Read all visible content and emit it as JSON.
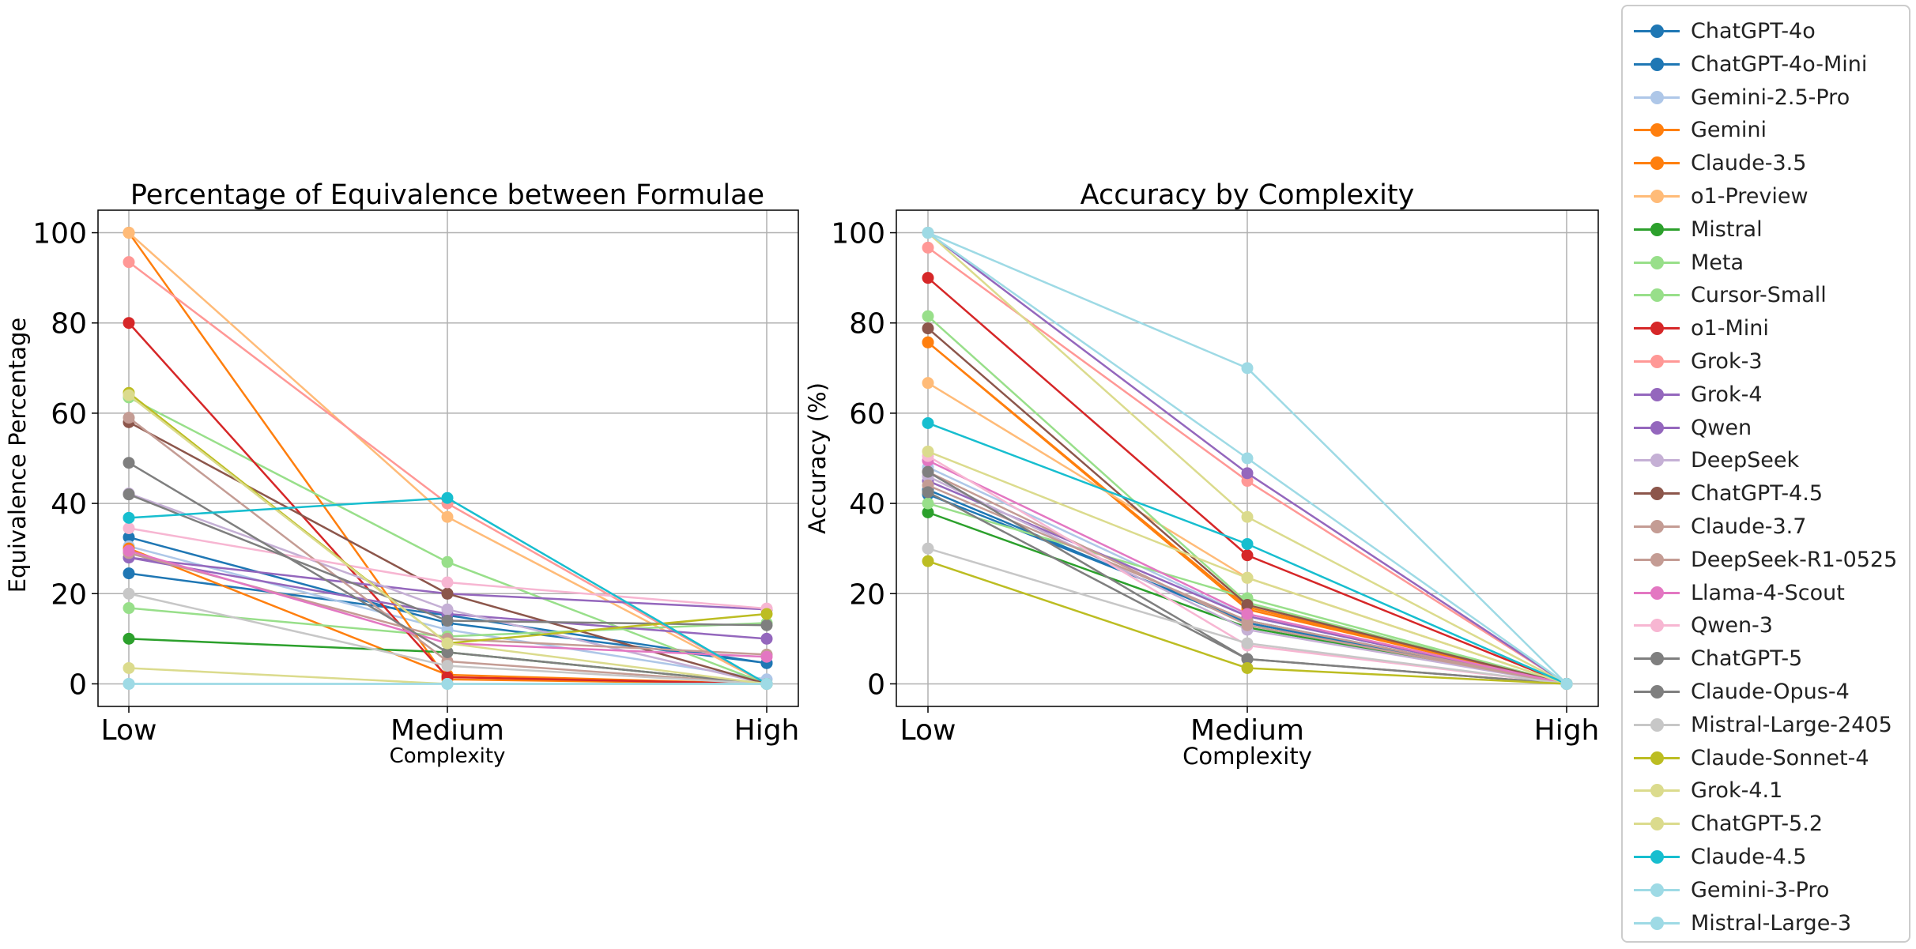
{
  "chart_data": [
    {
      "type": "line",
      "title": "Percentage of Equivalence between Formulae",
      "xlabel": "Complexity",
      "ylabel": "Equivalence Percentage",
      "categories": [
        "Low",
        "Medium",
        "High"
      ],
      "ylim": [
        -5,
        105
      ],
      "yticks": [
        0,
        20,
        40,
        60,
        80,
        100
      ],
      "grid": true,
      "series": [
        {
          "name": "ChatGPT-4o",
          "values": [
            32.5,
            13.5,
            4.6
          ]
        },
        {
          "name": "ChatGPT-4o-Mini",
          "values": [
            24.5,
            15.2,
            4.6
          ]
        },
        {
          "name": "Gemini-2.5-Pro",
          "values": [
            30.5,
            12.0,
            1.0
          ]
        },
        {
          "name": "Gemini",
          "values": [
            30.0,
            2.0,
            0.0
          ]
        },
        {
          "name": "Claude-3.5",
          "values": [
            100.0,
            1.0,
            0.0
          ]
        },
        {
          "name": "o1-Preview",
          "values": [
            100.0,
            37.0,
            0.0
          ]
        },
        {
          "name": "Mistral",
          "values": [
            10.0,
            7.0,
            0.0
          ]
        },
        {
          "name": "Meta",
          "values": [
            63.5,
            27.0,
            0.0
          ]
        },
        {
          "name": "Cursor-Small",
          "values": [
            16.8,
            10.5,
            13.5
          ]
        },
        {
          "name": "o1-Mini",
          "values": [
            80.0,
            1.5,
            0.0
          ]
        },
        {
          "name": "Grok-3",
          "values": [
            93.5,
            40.0,
            0.0
          ]
        },
        {
          "name": "Grok-4",
          "values": [
            28.0,
            15.5,
            10.0
          ]
        },
        {
          "name": "Qwen",
          "values": [
            28.0,
            20.0,
            16.5
          ]
        },
        {
          "name": "DeepSeek",
          "values": [
            42.2,
            16.5,
            0.0
          ]
        },
        {
          "name": "ChatGPT-4.5",
          "values": [
            58.0,
            20.0,
            0.0
          ]
        },
        {
          "name": "Claude-3.7",
          "values": [
            59.0,
            5.0,
            0.0
          ]
        },
        {
          "name": "DeepSeek-R1-0525",
          "values": [
            29.0,
            10.0,
            6.5
          ]
        },
        {
          "name": "Llama-4-Scout",
          "values": [
            29.5,
            9.0,
            6.0
          ]
        },
        {
          "name": "Qwen-3",
          "values": [
            34.5,
            22.5,
            16.7
          ]
        },
        {
          "name": "ChatGPT-5",
          "values": [
            49.0,
            7.0,
            0.0
          ]
        },
        {
          "name": "Claude-Opus-4",
          "values": [
            42.0,
            14.0,
            13.0
          ]
        },
        {
          "name": "Mistral-Large-2405",
          "values": [
            20.0,
            4.0,
            0.0
          ]
        },
        {
          "name": "Claude-Sonnet-4",
          "values": [
            64.5,
            9.0,
            15.5
          ]
        },
        {
          "name": "Grok-4.1",
          "values": [
            3.5,
            0.0,
            0.0
          ]
        },
        {
          "name": "ChatGPT-5.2",
          "values": [
            64.0,
            9.0,
            0.0
          ]
        },
        {
          "name": "Claude-4.5",
          "values": [
            36.8,
            41.2,
            0.0
          ]
        },
        {
          "name": "Gemini-3-Pro",
          "values": [
            0.0,
            0.0,
            0.0
          ]
        },
        {
          "name": "Mistral-Large-3",
          "values": [
            0.0,
            0.0,
            0.0
          ]
        }
      ]
    },
    {
      "type": "line",
      "title": "Accuracy by Complexity",
      "xlabel": "Complexity",
      "ylabel": "Accuracy (%)",
      "categories": [
        "Low",
        "Medium",
        "High"
      ],
      "ylim": [
        -5,
        105
      ],
      "yticks": [
        0,
        20,
        40,
        60,
        80,
        100
      ],
      "grid": true,
      "series": [
        {
          "name": "ChatGPT-4o",
          "values": [
            43.0,
            13.5,
            0.0
          ]
        },
        {
          "name": "ChatGPT-4o-Mini",
          "values": [
            42.0,
            14.0,
            0.0
          ]
        },
        {
          "name": "Gemini-2.5-Pro",
          "values": [
            48.0,
            15.0,
            0.0
          ]
        },
        {
          "name": "Gemini",
          "values": [
            75.7,
            17.0,
            0.0
          ]
        },
        {
          "name": "Claude-3.5",
          "values": [
            75.7,
            16.5,
            0.0
          ]
        },
        {
          "name": "o1-Preview",
          "values": [
            66.7,
            23.5,
            0.0
          ]
        },
        {
          "name": "Mistral",
          "values": [
            38.0,
            12.5,
            0.0
          ]
        },
        {
          "name": "Meta",
          "values": [
            81.5,
            18.0,
            0.0
          ]
        },
        {
          "name": "Cursor-Small",
          "values": [
            40.0,
            19.0,
            0.0
          ]
        },
        {
          "name": "o1-Mini",
          "values": [
            90.0,
            28.5,
            0.0
          ]
        },
        {
          "name": "Grok-3",
          "values": [
            96.7,
            45.0,
            0.0
          ]
        },
        {
          "name": "Grok-4",
          "values": [
            100.0,
            46.7,
            0.0
          ]
        },
        {
          "name": "Qwen",
          "values": [
            45.0,
            15.0,
            0.0
          ]
        },
        {
          "name": "DeepSeek",
          "values": [
            46.0,
            12.0,
            0.0
          ]
        },
        {
          "name": "ChatGPT-4.5",
          "values": [
            78.8,
            17.5,
            0.0
          ]
        },
        {
          "name": "Claude-3.7",
          "values": [
            47.0,
            13.0,
            0.0
          ]
        },
        {
          "name": "DeepSeek-R1-0525",
          "values": [
            44.0,
            14.0,
            0.0
          ]
        },
        {
          "name": "Llama-4-Scout",
          "values": [
            49.5,
            15.5,
            0.0
          ]
        },
        {
          "name": "Qwen-3",
          "values": [
            50.5,
            8.5,
            0.0
          ]
        },
        {
          "name": "ChatGPT-5",
          "values": [
            47.0,
            5.5,
            0.0
          ]
        },
        {
          "name": "Claude-Opus-4",
          "values": [
            42.5,
            5.5,
            0.0
          ]
        },
        {
          "name": "Mistral-Large-2405",
          "values": [
            30.0,
            9.0,
            0.0
          ]
        },
        {
          "name": "Claude-Sonnet-4",
          "values": [
            27.2,
            3.5,
            0.0
          ]
        },
        {
          "name": "Grok-4.1",
          "values": [
            51.5,
            23.5,
            0.0
          ]
        },
        {
          "name": "ChatGPT-5.2",
          "values": [
            100.0,
            37.0,
            0.0
          ]
        },
        {
          "name": "Claude-4.5",
          "values": [
            57.8,
            31.0,
            0.0
          ]
        },
        {
          "name": "Gemini-3-Pro",
          "values": [
            100.0,
            70.0,
            0.0
          ]
        },
        {
          "name": "Mistral-Large-3",
          "values": [
            100.0,
            50.0,
            0.0
          ]
        }
      ]
    }
  ],
  "legend": {
    "placement": "right",
    "items": [
      {
        "label": "ChatGPT-4o",
        "color": "#1f77b4"
      },
      {
        "label": "ChatGPT-4o-Mini",
        "color": "#1f77b4"
      },
      {
        "label": "Gemini-2.5-Pro",
        "color": "#aec7e8"
      },
      {
        "label": "Gemini",
        "color": "#ff7f0e"
      },
      {
        "label": "Claude-3.5",
        "color": "#ff7f0e"
      },
      {
        "label": "o1-Preview",
        "color": "#ffbb78"
      },
      {
        "label": "Mistral",
        "color": "#2ca02c"
      },
      {
        "label": "Meta",
        "color": "#98df8a"
      },
      {
        "label": "Cursor-Small",
        "color": "#98df8a"
      },
      {
        "label": "o1-Mini",
        "color": "#d62728"
      },
      {
        "label": "Grok-3",
        "color": "#ff9896"
      },
      {
        "label": "Grok-4",
        "color": "#9467bd"
      },
      {
        "label": "Qwen",
        "color": "#9467bd"
      },
      {
        "label": "DeepSeek",
        "color": "#c5b0d5"
      },
      {
        "label": "ChatGPT-4.5",
        "color": "#8c564b"
      },
      {
        "label": "Claude-3.7",
        "color": "#c49c94"
      },
      {
        "label": "DeepSeek-R1-0525",
        "color": "#c49c94"
      },
      {
        "label": "Llama-4-Scout",
        "color": "#e377c2"
      },
      {
        "label": "Qwen-3",
        "color": "#f7b6d2"
      },
      {
        "label": "ChatGPT-5",
        "color": "#7f7f7f"
      },
      {
        "label": "Claude-Opus-4",
        "color": "#7f7f7f"
      },
      {
        "label": "Mistral-Large-2405",
        "color": "#c7c7c7"
      },
      {
        "label": "Claude-Sonnet-4",
        "color": "#bcbd22"
      },
      {
        "label": "Grok-4.1",
        "color": "#dbdb8d"
      },
      {
        "label": "ChatGPT-5.2",
        "color": "#dbdb8d"
      },
      {
        "label": "Claude-4.5",
        "color": "#17becf"
      },
      {
        "label": "Gemini-3-Pro",
        "color": "#9edae5"
      },
      {
        "label": "Mistral-Large-3",
        "color": "#9edae5"
      }
    ]
  }
}
